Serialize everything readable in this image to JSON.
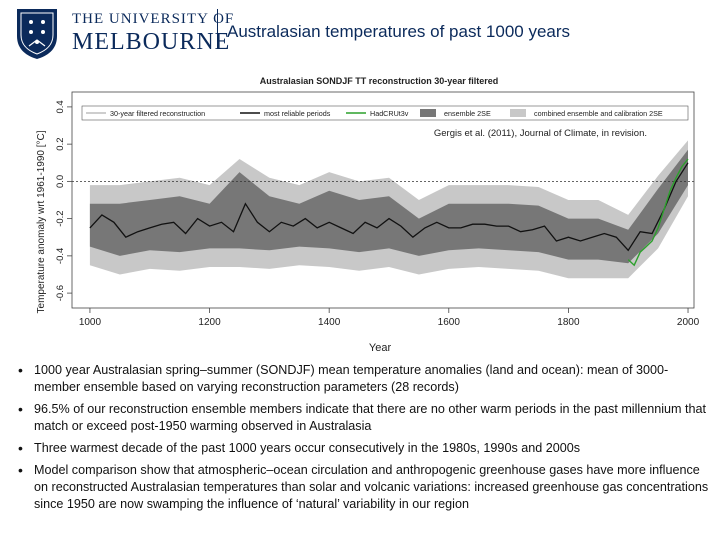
{
  "header": {
    "university_line1": "THE UNIVERSITY OF",
    "university_line2": "MELBOURNE",
    "slide_title": "Australasian temperatures of past 1000 years"
  },
  "colors": {
    "brand_navy": "#0b2a5b",
    "ensemble_2se": "#777777",
    "combined_2se": "#c8c8c8",
    "hadcrut": "#2ca02c"
  },
  "chart_data": {
    "type": "line",
    "title": "Australasian SONDJF TT reconstruction 30-year filtered",
    "citation": "Gergis et al. (2011), Journal of Climate, in revision.",
    "xlabel": "Year",
    "ylabel": "Temperature anomaly wrt 1961-1990 [°C]",
    "xlim": [
      970,
      2010
    ],
    "ylim": [
      -0.68,
      0.48
    ],
    "xticks": [
      1000,
      1200,
      1400,
      1600,
      1800,
      2000
    ],
    "yticks": [
      -0.6,
      -0.4,
      -0.2,
      0.0,
      0.2,
      0.4
    ],
    "zero_line": "dotted",
    "legend_position": "top",
    "legend": [
      "30-year filtered reconstruction",
      "most reliable periods",
      "HadCRUt3v",
      "ensemble 2SE",
      "combined ensemble and calibration 2SE"
    ],
    "series": [
      {
        "name": "30-year filtered reconstruction",
        "x": [
          1000,
          1020,
          1040,
          1060,
          1080,
          1100,
          1120,
          1140,
          1160,
          1180,
          1200,
          1220,
          1240,
          1260,
          1280,
          1300,
          1320,
          1340,
          1360,
          1380,
          1400,
          1420,
          1440,
          1460,
          1480,
          1500,
          1520,
          1540,
          1560,
          1580,
          1600,
          1620,
          1640,
          1660,
          1680,
          1700,
          1720,
          1740,
          1760,
          1780,
          1800,
          1820,
          1840,
          1860,
          1880,
          1900,
          1920,
          1940,
          1960,
          1980,
          2000
        ],
        "y": [
          -0.25,
          -0.18,
          -0.22,
          -0.3,
          -0.27,
          -0.25,
          -0.23,
          -0.22,
          -0.28,
          -0.2,
          -0.24,
          -0.22,
          -0.27,
          -0.12,
          -0.22,
          -0.27,
          -0.22,
          -0.24,
          -0.2,
          -0.25,
          -0.22,
          -0.25,
          -0.28,
          -0.22,
          -0.25,
          -0.2,
          -0.24,
          -0.3,
          -0.25,
          -0.22,
          -0.25,
          -0.25,
          -0.23,
          -0.23,
          -0.24,
          -0.24,
          -0.27,
          -0.26,
          -0.24,
          -0.32,
          -0.3,
          -0.32,
          -0.3,
          -0.28,
          -0.3,
          -0.37,
          -0.27,
          -0.28,
          -0.15,
          0.0,
          0.1
        ]
      },
      {
        "name": "HadCRUt3v",
        "x": [
          1900,
          1910,
          1920,
          1930,
          1940,
          1950,
          1960,
          1970,
          1980,
          1990,
          2000
        ],
        "y": [
          -0.42,
          -0.45,
          -0.38,
          -0.35,
          -0.32,
          -0.25,
          -0.15,
          -0.05,
          0.02,
          0.08,
          0.12
        ]
      }
    ],
    "bands": [
      {
        "name": "ensemble 2SE",
        "x": [
          1000,
          1050,
          1100,
          1150,
          1200,
          1250,
          1300,
          1350,
          1400,
          1450,
          1500,
          1550,
          1600,
          1650,
          1700,
          1750,
          1800,
          1850,
          1900,
          1950,
          2000
        ],
        "lower": [
          -0.35,
          -0.4,
          -0.37,
          -0.38,
          -0.36,
          -0.36,
          -0.37,
          -0.35,
          -0.36,
          -0.38,
          -0.36,
          -0.4,
          -0.37,
          -0.36,
          -0.37,
          -0.38,
          -0.42,
          -0.42,
          -0.44,
          -0.28,
          -0.02
        ],
        "upper": [
          -0.12,
          -0.12,
          -0.1,
          -0.08,
          -0.12,
          0.05,
          -0.08,
          -0.12,
          -0.05,
          -0.1,
          -0.08,
          -0.2,
          -0.12,
          -0.12,
          -0.12,
          -0.13,
          -0.2,
          -0.2,
          -0.26,
          -0.04,
          0.17
        ]
      },
      {
        "name": "combined ensemble and calibration 2SE",
        "x": [
          1000,
          1050,
          1100,
          1150,
          1200,
          1250,
          1300,
          1350,
          1400,
          1450,
          1500,
          1550,
          1600,
          1650,
          1700,
          1750,
          1800,
          1850,
          1900,
          1950,
          2000
        ],
        "lower": [
          -0.45,
          -0.5,
          -0.47,
          -0.48,
          -0.46,
          -0.46,
          -0.47,
          -0.45,
          -0.46,
          -0.48,
          -0.46,
          -0.5,
          -0.47,
          -0.46,
          -0.47,
          -0.48,
          -0.52,
          -0.52,
          -0.52,
          -0.36,
          -0.08
        ],
        "upper": [
          -0.02,
          -0.02,
          0.0,
          0.02,
          -0.02,
          0.12,
          0.02,
          -0.02,
          0.05,
          0.0,
          0.02,
          -0.1,
          -0.02,
          -0.02,
          -0.02,
          -0.03,
          -0.1,
          -0.1,
          -0.18,
          0.03,
          0.22
        ]
      }
    ]
  },
  "bullets": [
    "1000 year Australasian spring–summer (SONDJF) mean temperature anomalies (land and ocean): mean of 3000-member ensemble based on varying reconstruction parameters (28 records)",
    "96.5% of our reconstruction ensemble members indicate that there are no other warm periods in the past millennium that match or exceed post-1950 warming observed in Australasia",
    "Three warmest decade of the past 1000 years occur consecutively in the 1980s, 1990s and 2000s",
    "Model comparison show that atmospheric–ocean circulation and anthropogenic greenhouse gases have more influence on reconstructed Australasian temperatures than solar and volcanic variations: increased greenhouse gas concentrations since 1950 are now swamping the influence of ‘natural’ variability in our region"
  ]
}
